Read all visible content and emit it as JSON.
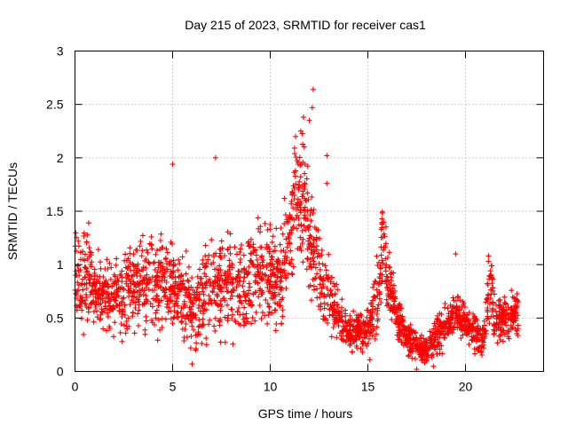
{
  "chart_data": {
    "type": "scatter",
    "title": "Day 215 of 2023, SRMTID for receiver cas1",
    "xlabel": "GPS time / hours",
    "ylabel": "SRMTID / TECUs",
    "xlim": [
      0,
      24
    ],
    "ylim": [
      0,
      3
    ],
    "x_ticks": [
      0,
      5,
      10,
      15,
      20
    ],
    "y_ticks": [
      0,
      0.5,
      1,
      1.5,
      2,
      2.5,
      3
    ],
    "x_tick_labels": [
      "0",
      "5",
      "10",
      "15",
      "20"
    ],
    "y_tick_labels": [
      "0",
      "0.5",
      "1",
      "1.5",
      "2",
      "2.5",
      "3"
    ],
    "grid": true,
    "marker": "+",
    "series": [
      {
        "name": "SRMTID",
        "color": "#ff0000",
        "profile": {
          "hours": [
            0,
            0.5,
            1,
            1.5,
            2,
            2.5,
            3,
            3.5,
            4,
            4.5,
            5,
            5.5,
            6,
            6.5,
            7,
            7.5,
            8,
            8.5,
            9,
            9.5,
            10,
            10.5,
            11,
            11.25,
            11.5,
            11.75,
            12,
            12.25,
            12.5,
            13,
            13.5,
            14,
            14.5,
            15,
            15.5,
            15.75,
            16,
            16.5,
            17,
            17.5,
            18,
            18.5,
            19,
            19.5,
            20,
            20.5,
            21,
            21.25,
            21.5,
            22,
            22.7
          ],
          "typical": [
            0.8,
            0.85,
            0.75,
            0.7,
            0.75,
            0.75,
            0.8,
            0.8,
            0.8,
            0.85,
            0.85,
            0.75,
            0.55,
            0.65,
            0.75,
            0.85,
            0.8,
            0.85,
            0.85,
            0.95,
            0.9,
            0.85,
            1.3,
            1.6,
            1.7,
            1.6,
            1.3,
            1.1,
            0.9,
            0.7,
            0.55,
            0.35,
            0.4,
            0.35,
            0.8,
            1.2,
            0.8,
            0.5,
            0.3,
            0.25,
            0.2,
            0.3,
            0.45,
            0.55,
            0.45,
            0.35,
            0.35,
            0.9,
            0.45,
            0.5,
            0.55
          ],
          "spread": [
            0.3,
            0.3,
            0.25,
            0.25,
            0.25,
            0.3,
            0.3,
            0.3,
            0.3,
            0.3,
            0.3,
            0.3,
            0.25,
            0.3,
            0.3,
            0.35,
            0.3,
            0.35,
            0.35,
            0.35,
            0.3,
            0.35,
            0.35,
            0.4,
            0.4,
            0.4,
            0.4,
            0.3,
            0.25,
            0.25,
            0.2,
            0.12,
            0.12,
            0.15,
            0.3,
            0.3,
            0.25,
            0.15,
            0.12,
            0.1,
            0.1,
            0.15,
            0.15,
            0.15,
            0.12,
            0.12,
            0.12,
            0.3,
            0.15,
            0.15,
            0.15
          ]
        },
        "samples_per_hour": 110,
        "peak_points": [
          {
            "x": 12.2,
            "y": 2.64
          },
          {
            "x": 12.15,
            "y": 2.47
          },
          {
            "x": 12.0,
            "y": 2.35
          },
          {
            "x": 11.7,
            "y": 2.38
          },
          {
            "x": 11.3,
            "y": 2.2
          },
          {
            "x": 5.0,
            "y": 1.94
          },
          {
            "x": 7.2,
            "y": 2.0
          },
          {
            "x": 12.9,
            "y": 2.02
          },
          {
            "x": 12.9,
            "y": 1.76
          },
          {
            "x": 19.5,
            "y": 1.1
          },
          {
            "x": 0.7,
            "y": 1.39
          },
          {
            "x": 17.5,
            "y": 0.02
          },
          {
            "x": 6.0,
            "y": 0.07
          },
          {
            "x": 15.1,
            "y": 0.11
          }
        ]
      }
    ]
  }
}
